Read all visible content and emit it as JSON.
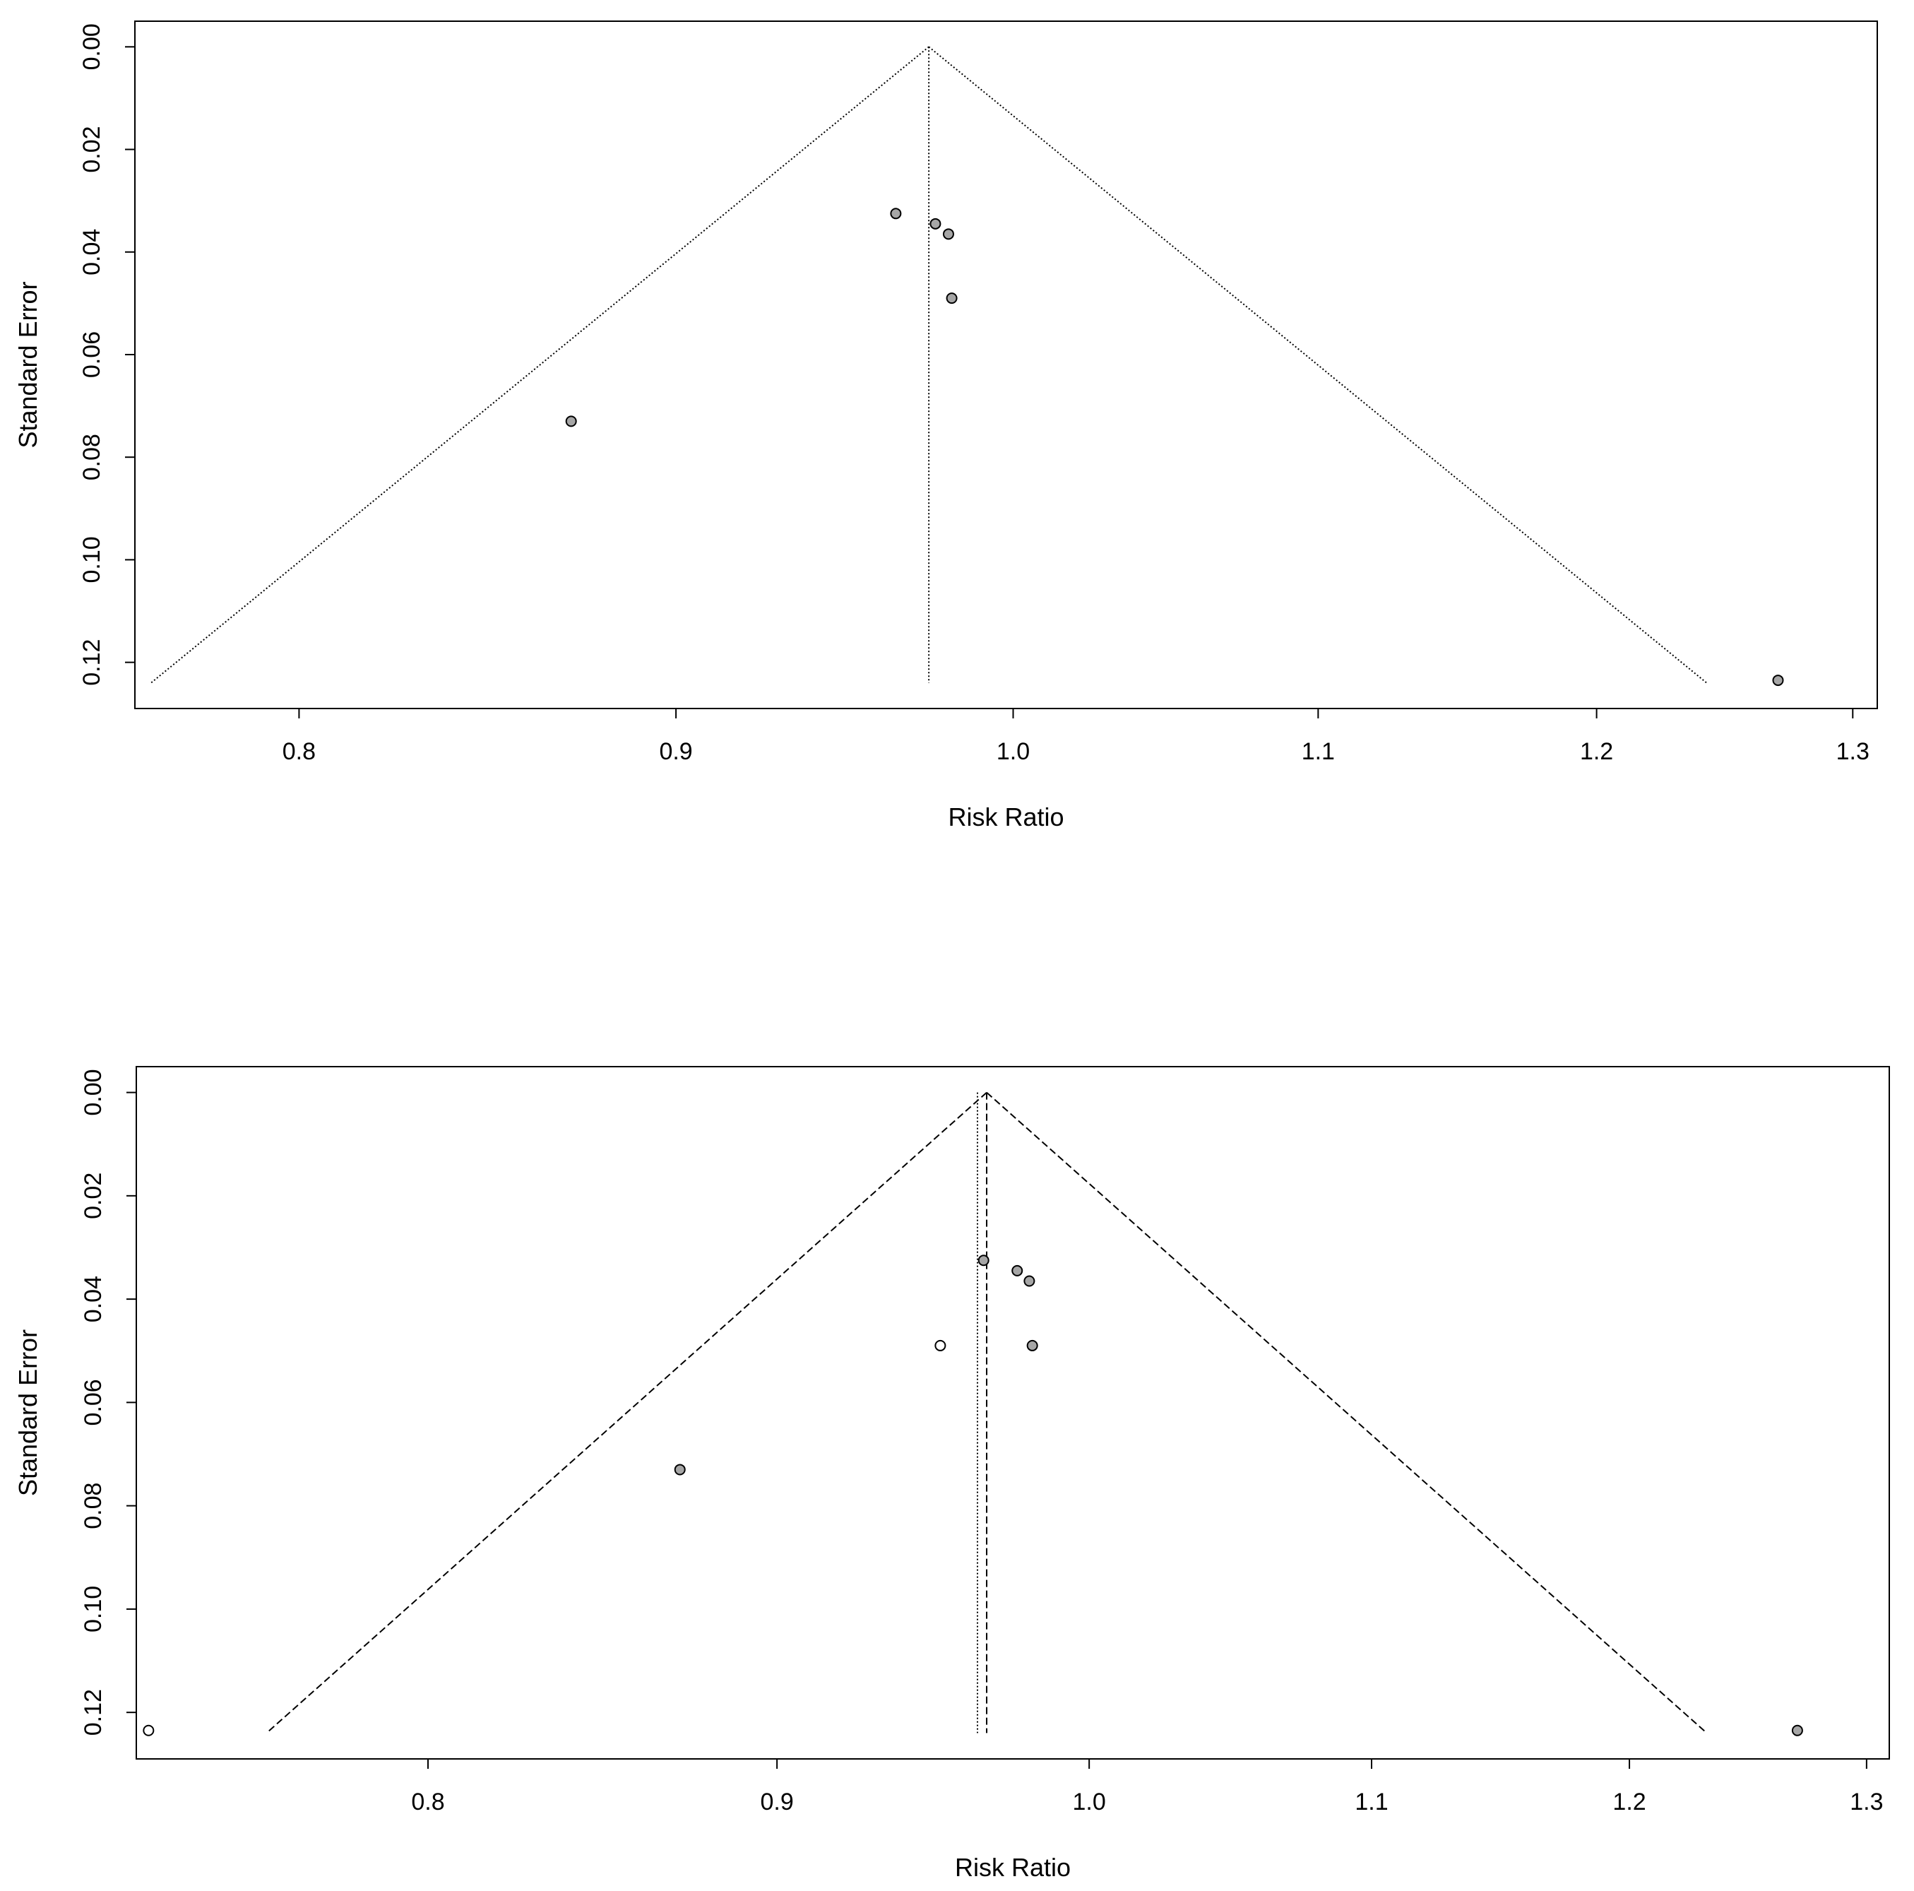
{
  "chart_data": [
    {
      "type": "scatter",
      "title": "",
      "xlabel": "Risk Ratio",
      "ylabel": "Standard Error",
      "scale": "log",
      "xlim": [
        0.76,
        1.31
      ],
      "ylim": [
        0.129,
        -0.005
      ],
      "xticks": [
        0.8,
        0.9,
        1.0,
        1.1,
        1.2,
        1.3
      ],
      "xtick_labels": [
        "0.8",
        "0.9",
        "1.0",
        "1.1",
        "1.2",
        "1.3"
      ],
      "yticks": [
        0.0,
        0.02,
        0.04,
        0.06,
        0.08,
        0.1,
        0.12
      ],
      "ytick_labels": [
        "0.00",
        "0.02",
        "0.04",
        "0.06",
        "0.08",
        "0.10",
        "0.12"
      ],
      "center_lines": [
        {
          "x": 0.974,
          "style": "dotted"
        }
      ],
      "funnel": {
        "center": 0.974,
        "se_max": 0.124,
        "style": "dotted"
      },
      "points": [
        {
          "x": 0.964,
          "y": 0.0325,
          "fill": "gray"
        },
        {
          "x": 0.976,
          "y": 0.0345,
          "fill": "gray"
        },
        {
          "x": 0.98,
          "y": 0.0365,
          "fill": "gray"
        },
        {
          "x": 0.981,
          "y": 0.049,
          "fill": "gray"
        },
        {
          "x": 0.871,
          "y": 0.073,
          "fill": "gray"
        },
        {
          "x": 1.27,
          "y": 0.1235,
          "fill": "gray"
        }
      ]
    },
    {
      "type": "scatter",
      "title": "",
      "xlabel": "Risk Ratio",
      "ylabel": "Standard Error",
      "scale": "log",
      "xlim": [
        0.725,
        1.31
      ],
      "ylim": [
        0.129,
        -0.005
      ],
      "xticks": [
        0.8,
        0.9,
        1.0,
        1.1,
        1.2,
        1.3
      ],
      "xtick_labels": [
        "0.8",
        "0.9",
        "1.0",
        "1.1",
        "1.2",
        "1.3"
      ],
      "yticks": [
        0.0,
        0.02,
        0.04,
        0.06,
        0.08,
        0.1,
        0.12
      ],
      "ytick_labels": [
        "0.00",
        "0.02",
        "0.04",
        "0.06",
        "0.08",
        "0.10",
        "0.12"
      ],
      "center_lines": [
        {
          "x": 0.963,
          "style": "dotted"
        },
        {
          "x": 0.966,
          "style": "dashed"
        }
      ],
      "funnel": {
        "center": 0.966,
        "se_max": 0.124,
        "style": "dashed"
      },
      "points": [
        {
          "x": 0.965,
          "y": 0.0325,
          "fill": "gray"
        },
        {
          "x": 0.976,
          "y": 0.0345,
          "fill": "gray"
        },
        {
          "x": 0.98,
          "y": 0.0365,
          "fill": "gray"
        },
        {
          "x": 0.981,
          "y": 0.049,
          "fill": "gray"
        },
        {
          "x": 0.871,
          "y": 0.073,
          "fill": "gray"
        },
        {
          "x": 1.27,
          "y": 0.1235,
          "fill": "gray"
        },
        {
          "x": 0.951,
          "y": 0.049,
          "fill": "white"
        },
        {
          "x": 0.728,
          "y": 0.1235,
          "fill": "white"
        }
      ]
    }
  ]
}
